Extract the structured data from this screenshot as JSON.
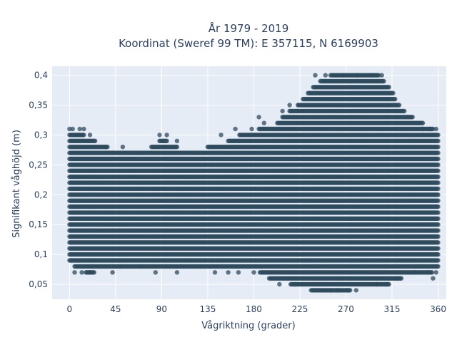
{
  "chart_data": {
    "type": "scatter",
    "title_lines": [
      "År 1979 - 2019",
      "Koordinat (Sweref 99 TM): E 357115, N 6169903"
    ],
    "xlabel": "Vågriktning (grader)",
    "ylabel": "Signifikant våghöjd (m)",
    "xlim": [
      -17,
      368
    ],
    "ylim": [
      0.025,
      0.415
    ],
    "x_ticks": [
      0,
      45,
      90,
      135,
      180,
      225,
      270,
      315,
      360
    ],
    "x_tick_labels": [
      "0",
      "45",
      "90",
      "135",
      "180",
      "225",
      "270",
      "315",
      "360"
    ],
    "y_ticks": [
      0.05,
      0.1,
      0.15,
      0.2,
      0.25,
      0.3,
      0.35,
      0.4
    ],
    "y_tick_labels": [
      "0,05",
      "0,1",
      "0,15",
      "0,2",
      "0,25",
      "0,3",
      "0,35",
      "0,4"
    ],
    "grid": true,
    "marker_color": "#2f4b5e",
    "marker_opacity": 0.75,
    "plot_bg": "#e5ecf6",
    "direction_step_deg": 1,
    "height_step_m": 0.01,
    "envelope": {
      "directions": [
        0,
        10,
        20,
        30,
        45,
        60,
        75,
        85,
        90,
        100,
        110,
        120,
        130,
        140,
        150,
        160,
        170,
        180,
        190,
        200,
        210,
        220,
        230,
        240,
        250,
        260,
        270,
        280,
        290,
        300,
        305,
        310,
        315,
        320,
        330,
        340,
        350,
        360
      ],
      "min_height": [
        0.09,
        0.08,
        0.07,
        0.08,
        0.08,
        0.08,
        0.08,
        0.08,
        0.08,
        0.08,
        0.08,
        0.08,
        0.08,
        0.08,
        0.08,
        0.08,
        0.08,
        0.08,
        0.07,
        0.06,
        0.06,
        0.05,
        0.05,
        0.04,
        0.04,
        0.04,
        0.04,
        0.05,
        0.05,
        0.05,
        0.05,
        0.05,
        0.06,
        0.06,
        0.07,
        0.07,
        0.07,
        0.08
      ],
      "max_height": [
        0.3,
        0.3,
        0.29,
        0.28,
        0.27,
        0.27,
        0.27,
        0.28,
        0.29,
        0.28,
        0.27,
        0.27,
        0.27,
        0.28,
        0.28,
        0.29,
        0.3,
        0.3,
        0.31,
        0.31,
        0.33,
        0.34,
        0.36,
        0.38,
        0.39,
        0.4,
        0.4,
        0.4,
        0.4,
        0.4,
        0.39,
        0.38,
        0.37,
        0.35,
        0.33,
        0.32,
        0.31,
        0.3
      ]
    },
    "outliers": [
      [
        0,
        0.31
      ],
      [
        3,
        0.31
      ],
      [
        10,
        0.31
      ],
      [
        14,
        0.31
      ],
      [
        8,
        0.3
      ],
      [
        20,
        0.3
      ],
      [
        35,
        0.28
      ],
      [
        52,
        0.28
      ],
      [
        88,
        0.3
      ],
      [
        95,
        0.3
      ],
      [
        105,
        0.29
      ],
      [
        148,
        0.3
      ],
      [
        162,
        0.31
      ],
      [
        178,
        0.31
      ],
      [
        185,
        0.33
      ],
      [
        190,
        0.32
      ],
      [
        208,
        0.34
      ],
      [
        215,
        0.35
      ],
      [
        240,
        0.4
      ],
      [
        250,
        0.4
      ],
      [
        268,
        0.4
      ],
      [
        281,
        0.4
      ],
      [
        296,
        0.4
      ],
      [
        305,
        0.4
      ],
      [
        330,
        0.33
      ],
      [
        345,
        0.31
      ],
      [
        352,
        0.31
      ],
      [
        358,
        0.31
      ],
      [
        5,
        0.07
      ],
      [
        12,
        0.07
      ],
      [
        20,
        0.07
      ],
      [
        42,
        0.07
      ],
      [
        50,
        0.08
      ],
      [
        70,
        0.08
      ],
      [
        84,
        0.07
      ],
      [
        105,
        0.07
      ],
      [
        142,
        0.07
      ],
      [
        155,
        0.07
      ],
      [
        165,
        0.07
      ],
      [
        180,
        0.07
      ],
      [
        195,
        0.06
      ],
      [
        205,
        0.05
      ],
      [
        220,
        0.05
      ],
      [
        255,
        0.04
      ],
      [
        262,
        0.04
      ],
      [
        272,
        0.04
      ],
      [
        280,
        0.04
      ],
      [
        300,
        0.05
      ],
      [
        310,
        0.05
      ],
      [
        320,
        0.06
      ],
      [
        338,
        0.07
      ],
      [
        350,
        0.07
      ],
      [
        355,
        0.06
      ],
      [
        358,
        0.07
      ]
    ]
  }
}
